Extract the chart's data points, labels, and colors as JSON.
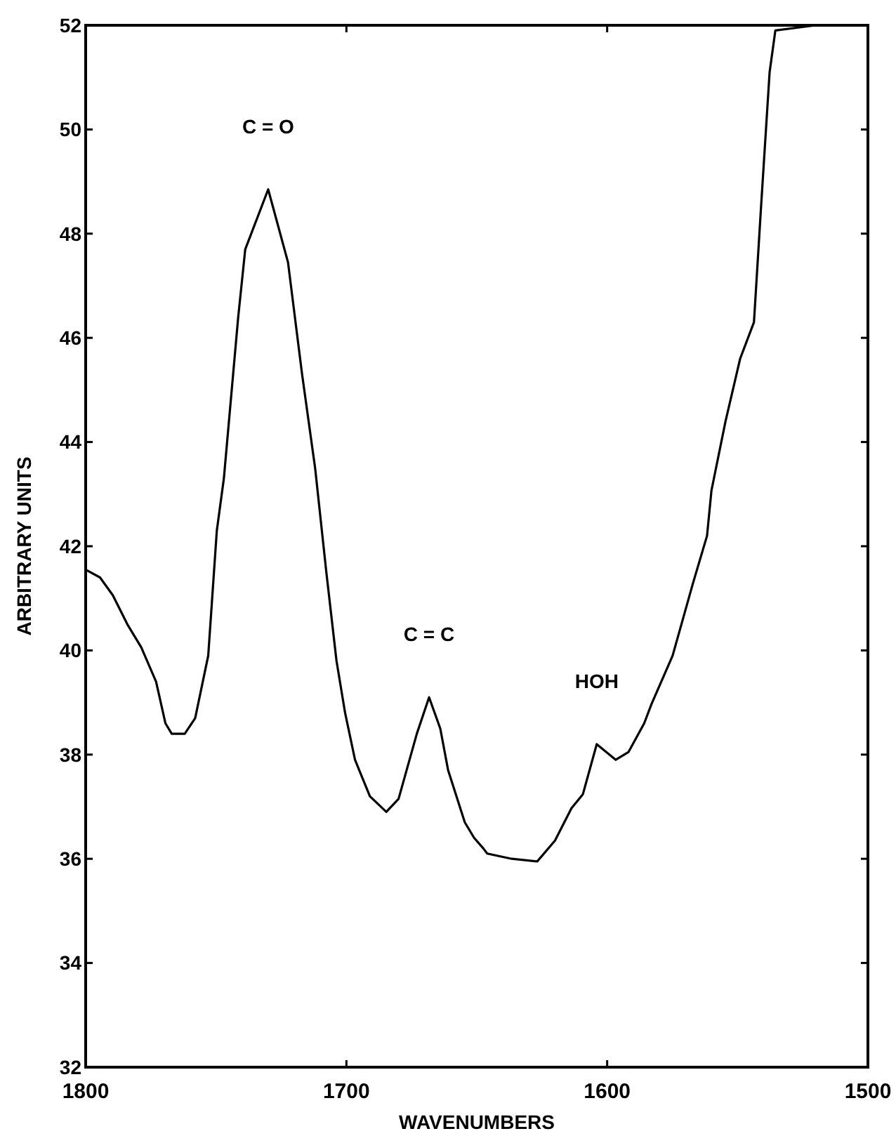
{
  "chart_data": {
    "type": "line",
    "xlabel": "WAVENUMBERS",
    "ylabel": "ARBITRARY UNITS",
    "xlim": [
      1800,
      1500
    ],
    "xticks": [
      1800,
      1700,
      1600,
      1500
    ],
    "ylim": [
      32,
      52
    ],
    "yticks": [
      32,
      34,
      36,
      38,
      40,
      42,
      44,
      46,
      48,
      50,
      52
    ],
    "grid": false,
    "marker": "none",
    "line_style": "solid",
    "annotations": [
      {
        "text": "C = O",
        "x": 1730,
        "y": 48.85
      },
      {
        "text": "C = C",
        "x": 1668.3,
        "y": 39.1
      },
      {
        "text": "HOH",
        "x": 1604,
        "y": 38.2
      }
    ],
    "series": [
      {
        "color": "#000000",
        "x": [
          1800,
          1794.5,
          1789.6,
          1784,
          1778.7,
          1773,
          1769.4,
          1767,
          1762,
          1758,
          1753,
          1749.7,
          1747,
          1741.5,
          1738.8,
          1730,
          1722.4,
          1717,
          1712,
          1707.7,
          1703.8,
          1700.5,
          1696.7,
          1691,
          1684.7,
          1680,
          1673,
          1668.3,
          1664,
          1661,
          1654.6,
          1651,
          1647.5,
          1646,
          1636.6,
          1626.8,
          1620,
          1613.7,
          1609.3,
          1604,
          1596.7,
          1591.8,
          1585.8,
          1583,
          1574.9,
          1567.2,
          1561.7,
          1560,
          1554.6,
          1549,
          1543.7,
          1541,
          1537.7,
          1535.5,
          1520,
          1500
        ],
        "values": [
          41.55,
          41.4,
          41.06,
          40.5,
          40.06,
          39.4,
          38.6,
          38.4,
          38.4,
          38.7,
          39.9,
          42.3,
          43.3,
          46.4,
          47.7,
          48.85,
          47.45,
          45.3,
          43.5,
          41.5,
          39.8,
          38.8,
          37.9,
          37.2,
          36.9,
          37.15,
          38.4,
          39.1,
          38.5,
          37.7,
          36.7,
          36.4,
          36.2,
          36.1,
          36.0,
          35.95,
          36.35,
          36.97,
          37.24,
          38.2,
          37.9,
          38.05,
          38.6,
          38.97,
          39.9,
          41.27,
          42.2,
          43.07,
          44.4,
          45.6,
          46.3,
          48.5,
          51.1,
          51.9,
          52,
          52
        ]
      }
    ]
  }
}
